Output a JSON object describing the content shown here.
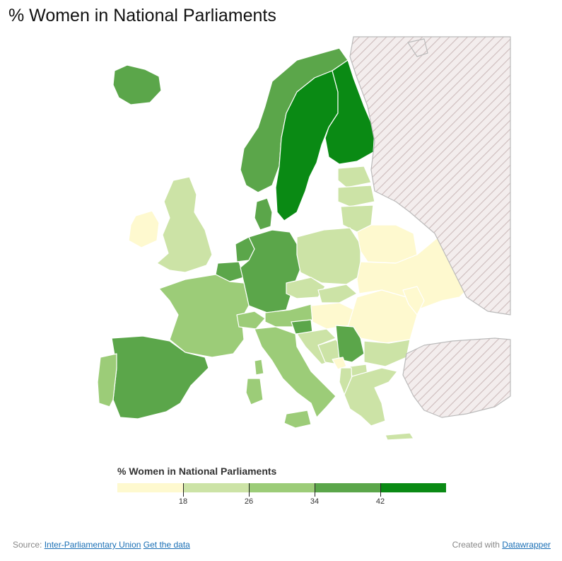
{
  "title": "% Women in National Parliaments",
  "legend": {
    "title": "% Women in National Parliaments",
    "ticks": [
      "18",
      "26",
      "34",
      "42"
    ],
    "colors": [
      "#fef9cf",
      "#cce3a6",
      "#9ccc78",
      "#5ba64a",
      "#2f8e2c",
      "#0a8a14"
    ]
  },
  "colors": {
    "non_data_fill": "#f3eded",
    "hatch_stroke": "#cdbcbc",
    "border": "#ffffff",
    "link": "#1a6fb5"
  },
  "map_regions": [
    {
      "name": "Iceland",
      "bin": 3
    },
    {
      "name": "Norway",
      "bin": 3
    },
    {
      "name": "Sweden",
      "bin": 5
    },
    {
      "name": "Finland",
      "bin": 5
    },
    {
      "name": "Denmark",
      "bin": 3
    },
    {
      "name": "Ireland",
      "bin": 0
    },
    {
      "name": "United Kingdom",
      "bin": 1
    },
    {
      "name": "Estonia",
      "bin": 1
    },
    {
      "name": "Latvia",
      "bin": 1
    },
    {
      "name": "Lithuania",
      "bin": 1
    },
    {
      "name": "Netherlands",
      "bin": 3
    },
    {
      "name": "Belgium",
      "bin": 3
    },
    {
      "name": "Germany",
      "bin": 3
    },
    {
      "name": "Poland",
      "bin": 1
    },
    {
      "name": "Belarus",
      "bin": 0
    },
    {
      "name": "Ukraine",
      "bin": 0
    },
    {
      "name": "France",
      "bin": 2
    },
    {
      "name": "Switzerland",
      "bin": 2
    },
    {
      "name": "Austria",
      "bin": 2
    },
    {
      "name": "Czech Republic",
      "bin": 1
    },
    {
      "name": "Slovakia",
      "bin": 1
    },
    {
      "name": "Hungary",
      "bin": 0
    },
    {
      "name": "Romania",
      "bin": 0
    },
    {
      "name": "Moldova",
      "bin": 0
    },
    {
      "name": "Slovenia",
      "bin": 3
    },
    {
      "name": "Croatia",
      "bin": 1
    },
    {
      "name": "Bosnia",
      "bin": 1
    },
    {
      "name": "Serbia",
      "bin": 3
    },
    {
      "name": "Montenegro",
      "bin": 0
    },
    {
      "name": "Bulgaria",
      "bin": 1
    },
    {
      "name": "Macedonia",
      "bin": 1
    },
    {
      "name": "Albania",
      "bin": 1
    },
    {
      "name": "Greece",
      "bin": 1
    },
    {
      "name": "Italy",
      "bin": 2
    },
    {
      "name": "Spain",
      "bin": 3
    },
    {
      "name": "Portugal",
      "bin": 2
    },
    {
      "name": "Sardinia",
      "bin": 2
    },
    {
      "name": "Corsica",
      "bin": 2
    },
    {
      "name": "Sicily",
      "bin": 2
    },
    {
      "name": "Crete",
      "bin": 1
    },
    {
      "name": "Russia",
      "bin": -1
    },
    {
      "name": "Turkey",
      "bin": -1
    }
  ],
  "footer": {
    "source_label": "Source:",
    "source_link": "Inter-Parliamentary Union",
    "data_link": "Get the data",
    "created_label": "Created with",
    "created_link": "Datawrapper"
  }
}
